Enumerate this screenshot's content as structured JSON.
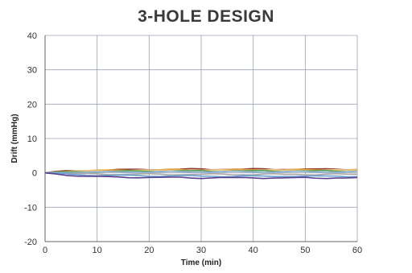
{
  "chart_data": {
    "type": "line",
    "title": "3-HOLE DESIGN",
    "xlabel": "Time (min)",
    "ylabel": "Drift (mmHg)",
    "xlim": [
      0,
      60
    ],
    "ylim": [
      -20,
      40
    ],
    "xticks": [
      0,
      10,
      20,
      30,
      40,
      50,
      60
    ],
    "yticks": [
      -20,
      -10,
      0,
      10,
      20,
      30,
      40
    ],
    "grid": true,
    "legend": "none",
    "x": [
      0,
      2,
      4,
      6,
      8,
      10,
      12,
      14,
      16,
      18,
      20,
      22,
      24,
      26,
      28,
      30,
      32,
      34,
      36,
      38,
      40,
      42,
      44,
      46,
      48,
      50,
      52,
      54,
      56,
      58,
      60
    ],
    "series": [
      {
        "color": "#8b3a2b",
        "values": [
          0,
          0.3,
          0.5,
          0.6,
          0.7,
          0.8,
          0.8,
          0.9,
          0.9,
          1.0,
          1.0,
          1.0,
          1.1,
          1.0,
          1.1,
          1.1,
          1.0,
          1.1,
          1.1,
          1.0,
          1.1,
          1.1,
          1.0,
          1.1,
          1.1,
          1.1,
          1.0,
          1.1,
          1.1,
          1.0,
          1.0
        ]
      },
      {
        "color": "#e3a33a",
        "values": [
          0,
          0.3,
          0.5,
          0.6,
          0.6,
          0.7,
          0.7,
          0.8,
          0.8,
          0.8,
          0.8,
          0.8,
          0.9,
          0.9,
          0.8,
          0.9,
          0.9,
          0.9,
          0.8,
          0.9,
          0.9,
          0.9,
          0.9,
          0.8,
          0.9,
          0.9,
          0.9,
          0.9,
          0.9,
          0.8,
          0.9
        ]
      },
      {
        "color": "#e8c888",
        "values": [
          0,
          0.2,
          0.4,
          0.5,
          0.5,
          0.6,
          0.6,
          0.6,
          0.7,
          0.7,
          0.7,
          0.7,
          0.7,
          0.7,
          0.8,
          0.7,
          0.7,
          0.8,
          0.7,
          0.8,
          0.7,
          0.8,
          0.8,
          0.7,
          0.8,
          0.8,
          0.7,
          0.8,
          0.8,
          0.7,
          0.8
        ]
      },
      {
        "color": "#5a9a5a",
        "values": [
          0,
          0.1,
          0.2,
          0.3,
          0.3,
          0.4,
          0.4,
          0.4,
          0.5,
          0.5,
          0.5,
          0.5,
          0.5,
          0.5,
          0.5,
          0.6,
          0.5,
          0.5,
          0.6,
          0.5,
          0.5,
          0.6,
          0.5,
          0.5,
          0.6,
          0.5,
          0.5,
          0.6,
          0.5,
          0.5,
          0.6
        ]
      },
      {
        "color": "#8fb4dc",
        "values": [
          0,
          0.1,
          0.1,
          0.2,
          0.2,
          0.2,
          0.2,
          0.3,
          0.3,
          0.3,
          0.2,
          0.3,
          0.3,
          0.3,
          0.3,
          0.3,
          0.3,
          0.3,
          0.3,
          0.3,
          0.3,
          0.3,
          0.3,
          0.3,
          0.3,
          0.3,
          0.3,
          0.3,
          0.3,
          0.3,
          0.3
        ]
      },
      {
        "color": "#a8a8a8",
        "values": [
          0,
          -0.1,
          -0.2,
          -0.3,
          -0.3,
          -0.3,
          -0.4,
          -0.4,
          -0.4,
          -0.4,
          -0.4,
          -0.4,
          -0.5,
          -0.4,
          -0.4,
          -0.5,
          -0.4,
          -0.4,
          -0.5,
          -0.4,
          -0.5,
          -0.4,
          -0.4,
          -0.5,
          -0.4,
          -0.4,
          -0.5,
          -0.4,
          -0.4,
          -0.5,
          -0.4
        ]
      },
      {
        "color": "#6aa0d0",
        "values": [
          0,
          -0.2,
          -0.4,
          -0.5,
          -0.6,
          -0.7,
          -0.7,
          -0.8,
          -0.8,
          -0.8,
          -0.9,
          -0.9,
          -0.9,
          -0.9,
          -0.9,
          -1.0,
          -0.9,
          -1.0,
          -1.0,
          -0.9,
          -1.0,
          -1.0,
          -1.0,
          -0.9,
          -1.0,
          -1.0,
          -1.0,
          -1.0,
          -0.9,
          -1.0,
          -1.0
        ]
      },
      {
        "color": "#5b3f8f",
        "values": [
          0,
          -0.3,
          -0.6,
          -0.8,
          -1.0,
          -1.1,
          -1.2,
          -1.2,
          -1.3,
          -1.3,
          -1.3,
          -1.4,
          -1.4,
          -1.3,
          -1.4,
          -1.5,
          -1.4,
          -1.4,
          -1.5,
          -1.4,
          -1.4,
          -1.5,
          -1.4,
          -1.5,
          -1.5,
          -1.4,
          -1.5,
          -1.5,
          -1.4,
          -1.5,
          -1.5
        ]
      }
    ]
  }
}
